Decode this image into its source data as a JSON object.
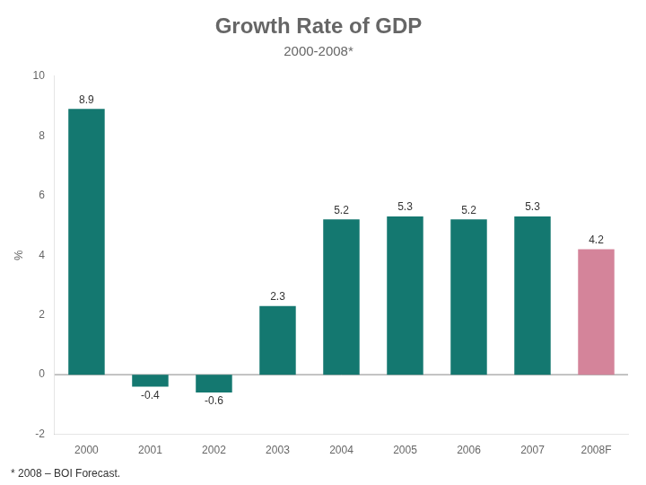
{
  "chart_data": {
    "type": "bar",
    "title": "Growth Rate of GDP",
    "subtitle": "2000-2008*",
    "categories": [
      "2000",
      "2001",
      "2002",
      "2003",
      "2004",
      "2005",
      "2006",
      "2007",
      "2008F"
    ],
    "values": [
      8.9,
      -0.4,
      -0.6,
      2.3,
      5.2,
      5.3,
      5.2,
      5.3,
      4.2
    ],
    "colors": [
      "#147870",
      "#147870",
      "#147870",
      "#147870",
      "#147870",
      "#147870",
      "#147870",
      "#147870",
      "#d4849a"
    ],
    "ylabel": "%",
    "ylim": [
      -2,
      10
    ],
    "yticks": [
      -2,
      0,
      2,
      4,
      6,
      8,
      10
    ],
    "footnote": "* 2008 – BOI Forecast.",
    "data_labels": true,
    "grid": false
  }
}
